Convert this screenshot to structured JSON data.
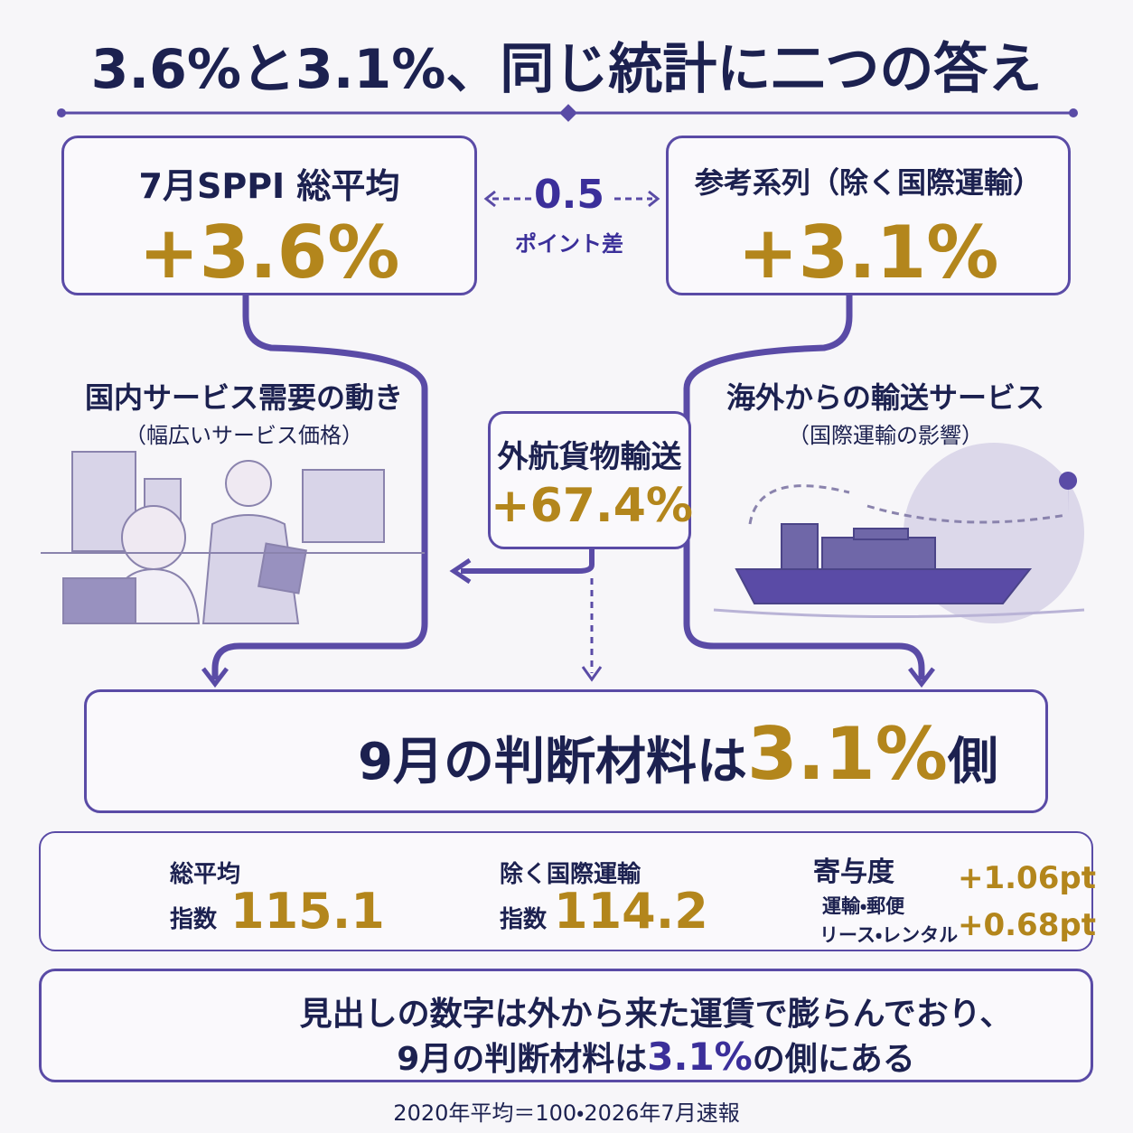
{
  "title": "3.6%と3.1%、同じ統計に二つの答え",
  "headline": {
    "left": {
      "label": "7月SPPI 総平均",
      "value": "+3.6%"
    },
    "right": {
      "label": "参考系列（除く国際運輸）",
      "value": "+3.1%"
    },
    "gap": {
      "value": "0.5",
      "label": "ポイント差"
    }
  },
  "branches": {
    "domestic": {
      "title": "国内サービス需要の動き",
      "note": "（幅広いサービス価格）"
    },
    "overseas": {
      "title": "海外からの輸送サービス",
      "note": "（国際運輸の影響）"
    },
    "freight": {
      "label": "外航貨物輸送",
      "value": "+67.4%"
    }
  },
  "conclusion": {
    "prefix": "9月の判断材料は",
    "highlight": "3.1%",
    "suffix": "側"
  },
  "stats": [
    {
      "label": "総平均",
      "sublabel": "指数",
      "value": "115.1"
    },
    {
      "label": "除く国際運輸",
      "sublabel": "指数",
      "value": "114.2"
    },
    {
      "label": "寄与度",
      "items": [
        {
          "label": "運輸・郵便",
          "value": "+1.06pt"
        },
        {
          "label": "リース・レンタル",
          "value": "+0.68pt"
        }
      ]
    }
  ],
  "summary": {
    "line1": "見出しの数字は外から来た運賃で膨らんでおり、",
    "line2": {
      "prefix": "9月の判断材料は",
      "highlight": "3.1%",
      "suffix": "の側にある"
    }
  },
  "footnote": "2020年平均＝100・2026年7月速報"
}
